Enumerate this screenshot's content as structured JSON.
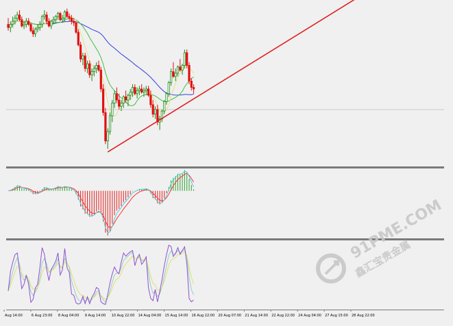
{
  "chart_data": {
    "type": "line",
    "x_labels": [
      "Aug 14:00",
      "6 Aug 23:00",
      "8 Aug 04:00",
      "9 Aug 14:00",
      "10 Aug 22:00",
      "14 Aug 04:00",
      "15 Aug 14:00",
      "16 Aug 22:00",
      "20 Aug 07:00",
      "21 Aug 14:00",
      "22 Aug 22:00",
      "24 Aug 04:00",
      "27 Aug 15:00",
      "28 Aug 22:00"
    ],
    "price_panel": {
      "ylim": [
        0,
        100
      ],
      "candles": [
        [
          88,
          92,
          84,
          86
        ],
        [
          86,
          90,
          83,
          88
        ],
        [
          88,
          93,
          86,
          90
        ],
        [
          90,
          94,
          88,
          92
        ],
        [
          92,
          96,
          90,
          94
        ],
        [
          94,
          97,
          90,
          91
        ],
        [
          91,
          93,
          86,
          87
        ],
        [
          87,
          90,
          85,
          88
        ],
        [
          88,
          92,
          86,
          90
        ],
        [
          90,
          92,
          87,
          88
        ],
        [
          88,
          89,
          83,
          84
        ],
        [
          84,
          86,
          80,
          82
        ],
        [
          82,
          86,
          80,
          85
        ],
        [
          85,
          88,
          83,
          86
        ],
        [
          86,
          90,
          84,
          88
        ],
        [
          88,
          94,
          86,
          93
        ],
        [
          93,
          97,
          91,
          94
        ],
        [
          94,
          96,
          88,
          90
        ],
        [
          90,
          92,
          86,
          87
        ],
        [
          87,
          91,
          85,
          90
        ],
        [
          90,
          93,
          88,
          91
        ],
        [
          91,
          94,
          89,
          93
        ],
        [
          93,
          96,
          91,
          95
        ],
        [
          95,
          96,
          90,
          91
        ],
        [
          91,
          94,
          89,
          92
        ],
        [
          92,
          97,
          90,
          96
        ],
        [
          96,
          98,
          92,
          93
        ],
        [
          93,
          95,
          90,
          92
        ],
        [
          92,
          94,
          88,
          90
        ],
        [
          90,
          92,
          87,
          89
        ],
        [
          89,
          90,
          82,
          83
        ],
        [
          83,
          85,
          74,
          75
        ],
        [
          75,
          77,
          64,
          66
        ],
        [
          66,
          70,
          62,
          68
        ],
        [
          68,
          70,
          58,
          60
        ],
        [
          60,
          65,
          57,
          63
        ],
        [
          63,
          65,
          54,
          56
        ],
        [
          56,
          60,
          52,
          58
        ],
        [
          58,
          62,
          55,
          60
        ],
        [
          60,
          64,
          57,
          62
        ],
        [
          62,
          65,
          58,
          59
        ],
        [
          59,
          61,
          45,
          47
        ],
        [
          47,
          50,
          30,
          32
        ],
        [
          32,
          35,
          12,
          14
        ],
        [
          14,
          22,
          9,
          20
        ],
        [
          20,
          32,
          18,
          30
        ],
        [
          30,
          40,
          26,
          38
        ],
        [
          38,
          46,
          35,
          44
        ],
        [
          44,
          48,
          38,
          40
        ],
        [
          40,
          44,
          34,
          36
        ],
        [
          36,
          40,
          33,
          38
        ],
        [
          38,
          43,
          35,
          42
        ],
        [
          42,
          46,
          38,
          40
        ],
        [
          40,
          44,
          36,
          43
        ],
        [
          43,
          47,
          40,
          45
        ],
        [
          45,
          50,
          42,
          48
        ],
        [
          48,
          50,
          43,
          44
        ],
        [
          44,
          48,
          41,
          46
        ],
        [
          46,
          49,
          43,
          47
        ],
        [
          47,
          50,
          44,
          45
        ],
        [
          45,
          48,
          42,
          46
        ],
        [
          46,
          49,
          43,
          47
        ],
        [
          47,
          49,
          42,
          43
        ],
        [
          43,
          46,
          35,
          37
        ],
        [
          37,
          40,
          29,
          31
        ],
        [
          31,
          36,
          28,
          34
        ],
        [
          34,
          37,
          24,
          26
        ],
        [
          26,
          30,
          21,
          28
        ],
        [
          28,
          34,
          26,
          33
        ],
        [
          33,
          40,
          31,
          39
        ],
        [
          39,
          45,
          37,
          44
        ],
        [
          44,
          52,
          42,
          51
        ],
        [
          51,
          60,
          49,
          58
        ],
        [
          58,
          64,
          54,
          55
        ],
        [
          55,
          60,
          52,
          57
        ],
        [
          57,
          62,
          55,
          61
        ],
        [
          61,
          66,
          58,
          59
        ],
        [
          59,
          63,
          56,
          62
        ],
        [
          62,
          72,
          60,
          70
        ],
        [
          70,
          72,
          60,
          62
        ],
        [
          62,
          64,
          50,
          52
        ],
        [
          52,
          54,
          46,
          48
        ],
        [
          48,
          50,
          44,
          47
        ]
      ],
      "trend_line": {
        "from_index": 44,
        "from_value": 7,
        "to_index": 106,
        "to_value": 62
      }
    },
    "macd_panel": {
      "ylim": [
        -16,
        7
      ]
    },
    "stochastic_panel": {
      "ylim": [
        0,
        100
      ]
    }
  },
  "watermark": {
    "url_text": "91PME.COM",
    "chinese_text": "鑫汇宝贵金属"
  }
}
